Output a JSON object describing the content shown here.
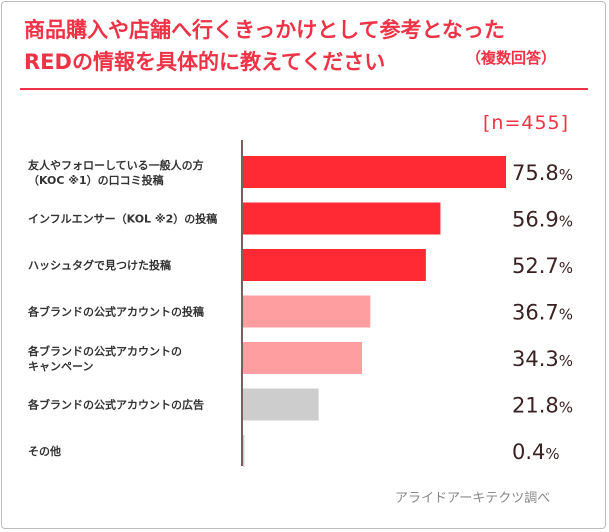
{
  "title_line1": "商品購入や店舗へ行くきっかけとして参考となった",
  "title_line2": "REDの情報を具体的に教えてください",
  "subtitle": "（複数回答）",
  "sample_size": "[n=455]",
  "source": "アライドアーキテクツ調べ",
  "chart_data": {
    "type": "bar",
    "orientation": "horizontal",
    "categories": [
      [
        "友人やフォローしている一般人の方",
        "（KOC ※1）の口コミ投稿"
      ],
      [
        "インフルエンサー（KOL ※2）の投稿"
      ],
      [
        "ハッシュタグで見つけた投稿"
      ],
      [
        "各ブランドの公式アカウントの投稿"
      ],
      [
        "各ブランドの公式アカウントの",
        "キャンペーン"
      ],
      [
        "各ブランドの公式アカウントの広告"
      ],
      [
        "その他"
      ]
    ],
    "values": [
      75.8,
      56.9,
      52.7,
      36.7,
      34.3,
      21.8,
      0.4
    ],
    "value_labels": [
      "75.8",
      "56.9",
      "52.7",
      "36.7",
      "34.3",
      "21.8",
      "0.4"
    ],
    "unit": "%",
    "colors": [
      "#ff2a33",
      "#ff2a33",
      "#ff2a33",
      "#ff9ea1",
      "#ff9ea1",
      "#cdcdcd",
      "#cdcdcd"
    ],
    "xlim": [
      0,
      100
    ]
  }
}
